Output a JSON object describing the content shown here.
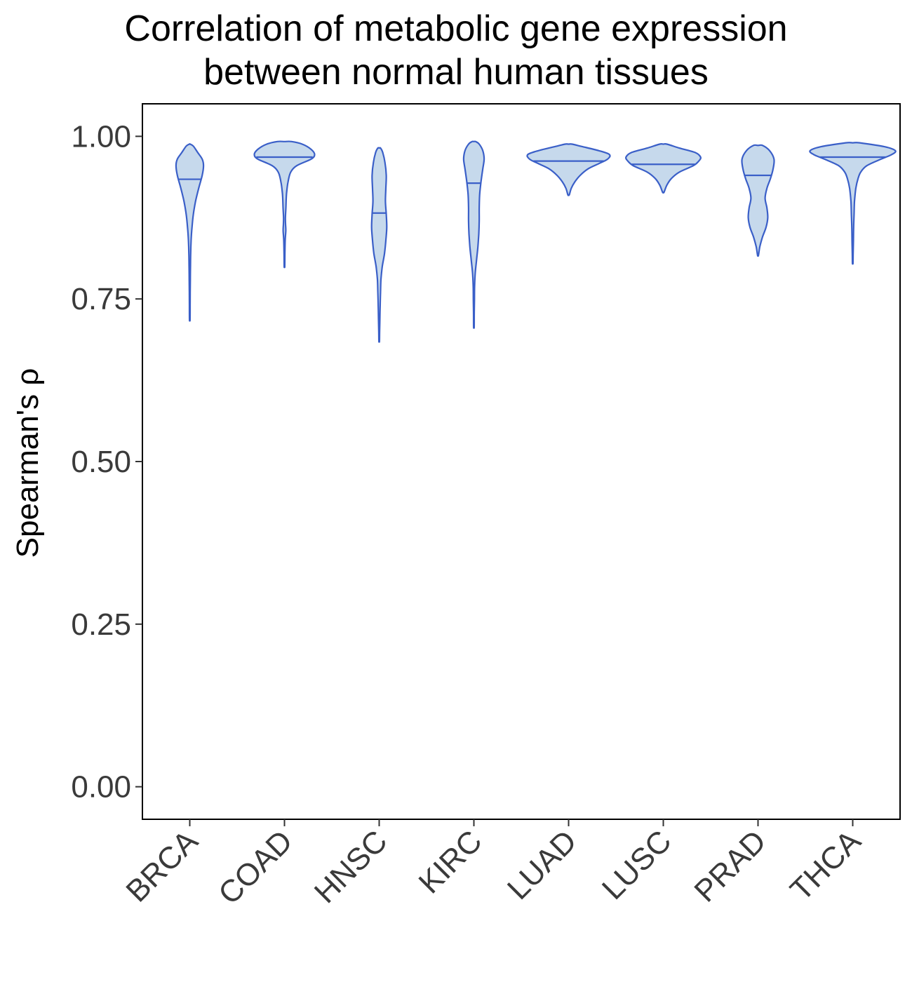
{
  "chart_data": {
    "type": "violin",
    "title_lines": [
      "Correlation of metabolic gene expression",
      "between normal human tissues"
    ],
    "xlabel": "",
    "ylabel": "Spearman's  ρ",
    "ylim": [
      -0.05,
      1.05
    ],
    "y_ticks": [
      "0.00",
      "0.25",
      "0.50",
      "0.75",
      "1.00"
    ],
    "y_tick_values": [
      0,
      0.25,
      0.5,
      0.75,
      1.0
    ],
    "categories": [
      "BRCA",
      "COAD",
      "HNSC",
      "KIRC",
      "LUAD",
      "LUSC",
      "PRAD",
      "THCA"
    ],
    "colors": {
      "fill": "#c6d9ec",
      "stroke": "#3a5fc8",
      "axis": "#000000"
    },
    "grid": false,
    "violins": [
      {
        "category": "BRCA",
        "median": 0.934,
        "min": 0.718,
        "max": 0.988,
        "profile": [
          [
            0.718,
            0.3
          ],
          [
            0.74,
            0.4
          ],
          [
            0.76,
            0.5
          ],
          [
            0.78,
            0.6
          ],
          [
            0.8,
            0.8
          ],
          [
            0.82,
            1.0
          ],
          [
            0.84,
            1.5
          ],
          [
            0.86,
            2.5
          ],
          [
            0.88,
            4
          ],
          [
            0.9,
            6.5
          ],
          [
            0.92,
            10
          ],
          [
            0.94,
            14
          ],
          [
            0.955,
            15.5
          ],
          [
            0.965,
            14
          ],
          [
            0.975,
            9
          ],
          [
            0.985,
            4
          ],
          [
            0.988,
            0.5
          ]
        ]
      },
      {
        "category": "COAD",
        "median": 0.968,
        "min": 0.8,
        "max": 0.992,
        "profile": [
          [
            0.8,
            0.3
          ],
          [
            0.82,
            0.5
          ],
          [
            0.84,
            0.8
          ],
          [
            0.855,
            1.5
          ],
          [
            0.865,
            1.2
          ],
          [
            0.875,
            1.0
          ],
          [
            0.89,
            1.6
          ],
          [
            0.905,
            2.0
          ],
          [
            0.915,
            2.5
          ],
          [
            0.93,
            4
          ],
          [
            0.945,
            7
          ],
          [
            0.955,
            14
          ],
          [
            0.965,
            30
          ],
          [
            0.972,
            34
          ],
          [
            0.98,
            30
          ],
          [
            0.988,
            20
          ],
          [
            0.992,
            8
          ]
        ]
      },
      {
        "category": "HNSC",
        "median": 0.882,
        "min": 0.685,
        "max": 0.982,
        "profile": [
          [
            0.685,
            0.3
          ],
          [
            0.7,
            0.5
          ],
          [
            0.72,
            0.8
          ],
          [
            0.74,
            1.1
          ],
          [
            0.76,
            1.5
          ],
          [
            0.78,
            2.0
          ],
          [
            0.8,
            3.5
          ],
          [
            0.82,
            6
          ],
          [
            0.84,
            7.5
          ],
          [
            0.86,
            8.5
          ],
          [
            0.88,
            8
          ],
          [
            0.9,
            7
          ],
          [
            0.92,
            7.5
          ],
          [
            0.94,
            8
          ],
          [
            0.96,
            6.5
          ],
          [
            0.975,
            4
          ],
          [
            0.982,
            1.5
          ]
        ]
      },
      {
        "category": "KIRC",
        "median": 0.928,
        "min": 0.707,
        "max": 0.992,
        "profile": [
          [
            0.707,
            0.3
          ],
          [
            0.73,
            0.4
          ],
          [
            0.75,
            0.6
          ],
          [
            0.77,
            0.8
          ],
          [
            0.79,
            1.5
          ],
          [
            0.81,
            3
          ],
          [
            0.83,
            4.5
          ],
          [
            0.85,
            5.5
          ],
          [
            0.87,
            6
          ],
          [
            0.89,
            6
          ],
          [
            0.91,
            6.5
          ],
          [
            0.93,
            8
          ],
          [
            0.95,
            10
          ],
          [
            0.965,
            11.5
          ],
          [
            0.978,
            10
          ],
          [
            0.988,
            6
          ],
          [
            0.992,
            2
          ]
        ]
      },
      {
        "category": "LUAD",
        "median": 0.962,
        "min": 0.91,
        "max": 0.988,
        "profile": [
          [
            0.91,
            0.8
          ],
          [
            0.92,
            3
          ],
          [
            0.93,
            7
          ],
          [
            0.94,
            13
          ],
          [
            0.95,
            22
          ],
          [
            0.958,
            34
          ],
          [
            0.965,
            44
          ],
          [
            0.972,
            46
          ],
          [
            0.978,
            34
          ],
          [
            0.984,
            16
          ],
          [
            0.988,
            4
          ]
        ]
      },
      {
        "category": "LUSC",
        "median": 0.957,
        "min": 0.914,
        "max": 0.988,
        "profile": [
          [
            0.914,
            0.8
          ],
          [
            0.925,
            4
          ],
          [
            0.935,
            9
          ],
          [
            0.945,
            18
          ],
          [
            0.955,
            34
          ],
          [
            0.962,
            40
          ],
          [
            0.968,
            42
          ],
          [
            0.975,
            36
          ],
          [
            0.982,
            18
          ],
          [
            0.988,
            4
          ]
        ]
      },
      {
        "category": "PRAD",
        "median": 0.94,
        "min": 0.817,
        "max": 0.986,
        "profile": [
          [
            0.817,
            0.5
          ],
          [
            0.83,
            2
          ],
          [
            0.845,
            5
          ],
          [
            0.86,
            9
          ],
          [
            0.875,
            11
          ],
          [
            0.89,
            10
          ],
          [
            0.905,
            8
          ],
          [
            0.92,
            10
          ],
          [
            0.935,
            14
          ],
          [
            0.95,
            17
          ],
          [
            0.965,
            18
          ],
          [
            0.978,
            13
          ],
          [
            0.986,
            5
          ]
        ]
      },
      {
        "category": "THCA",
        "median": 0.968,
        "min": 0.805,
        "max": 0.99,
        "profile": [
          [
            0.805,
            0.3
          ],
          [
            0.82,
            0.5
          ],
          [
            0.84,
            0.8
          ],
          [
            0.86,
            1.0
          ],
          [
            0.88,
            1.5
          ],
          [
            0.9,
            2.0
          ],
          [
            0.92,
            3.5
          ],
          [
            0.935,
            6
          ],
          [
            0.945,
            9
          ],
          [
            0.955,
            16
          ],
          [
            0.965,
            32
          ],
          [
            0.972,
            44
          ],
          [
            0.978,
            48
          ],
          [
            0.984,
            36
          ],
          [
            0.99,
            8
          ]
        ]
      }
    ]
  }
}
